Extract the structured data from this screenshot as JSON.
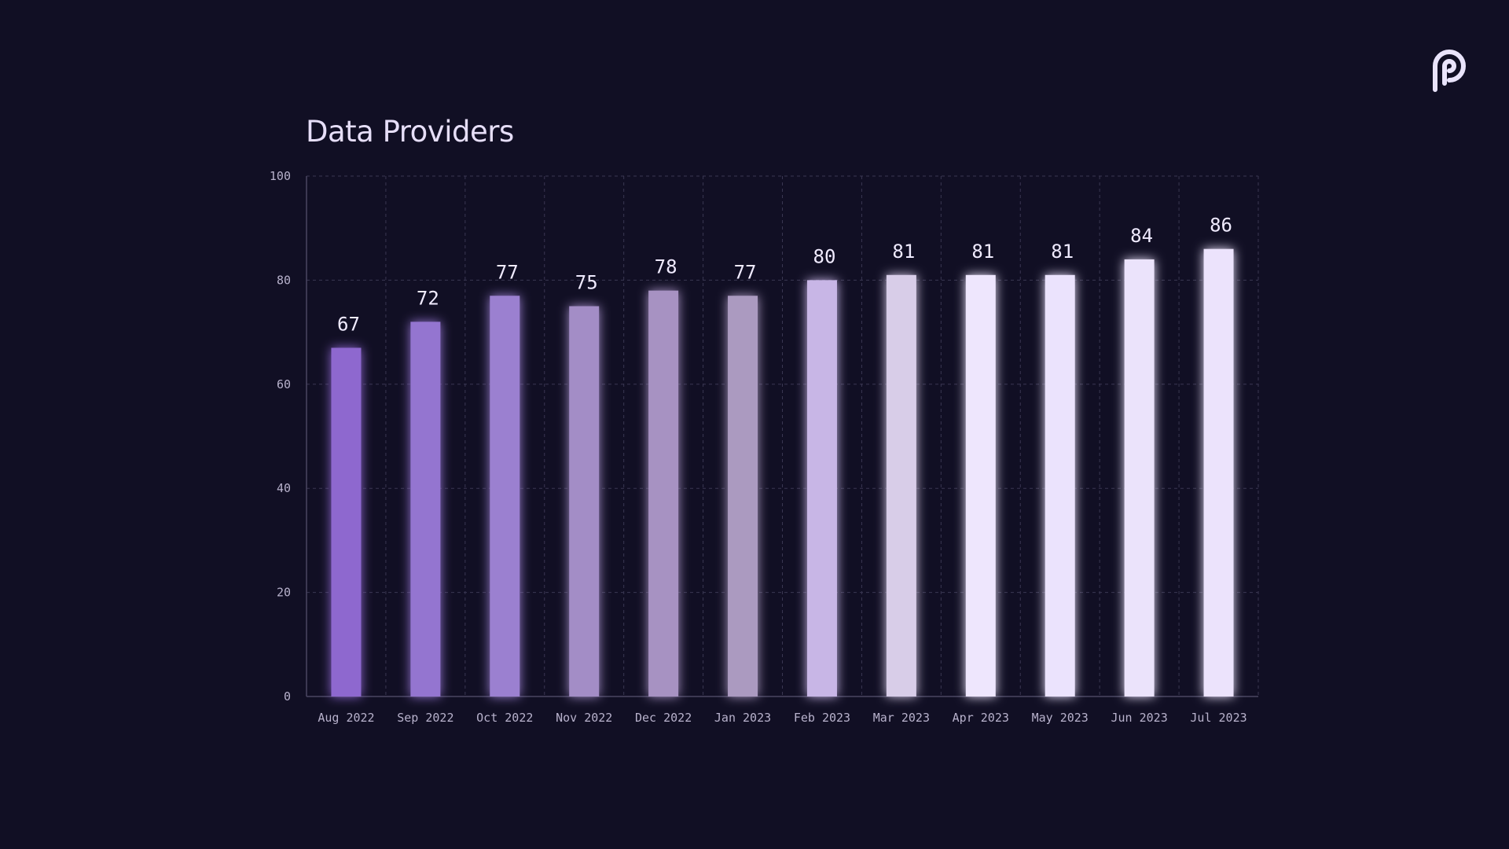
{
  "title": "Data Providers",
  "logo_icon": "pyth-logo-icon",
  "colors": {
    "background": "#110f24",
    "grid": "#3a3752",
    "axis": "#4a4762",
    "tick_text": "#b8b2cc",
    "value_text": "#f0ebff",
    "logo": "#e9e3fb"
  },
  "chart_data": {
    "type": "bar",
    "title": "Data Providers",
    "xlabel": "",
    "ylabel": "",
    "ylim": [
      0,
      100
    ],
    "yticks": [
      0,
      20,
      40,
      60,
      80,
      100
    ],
    "grid": true,
    "categories": [
      "Aug 2022",
      "Sep 2022",
      "Oct 2022",
      "Nov 2022",
      "Dec 2022",
      "Jan 2023",
      "Feb 2023",
      "Mar 2023",
      "Apr 2023",
      "May 2023",
      "Jun 2023",
      "Jul 2023"
    ],
    "values": [
      67,
      72,
      77,
      75,
      78,
      77,
      80,
      81,
      81,
      81,
      84,
      86
    ],
    "bar_colors": [
      "#8e68cf",
      "#9474d0",
      "#9b80d0",
      "#a38dc6",
      "#a792c2",
      "#ab9ac0",
      "#c8b6e6",
      "#d8cde8",
      "#eee6fd",
      "#ebe3fd",
      "#ebe3fb",
      "#ece3fc"
    ]
  }
}
